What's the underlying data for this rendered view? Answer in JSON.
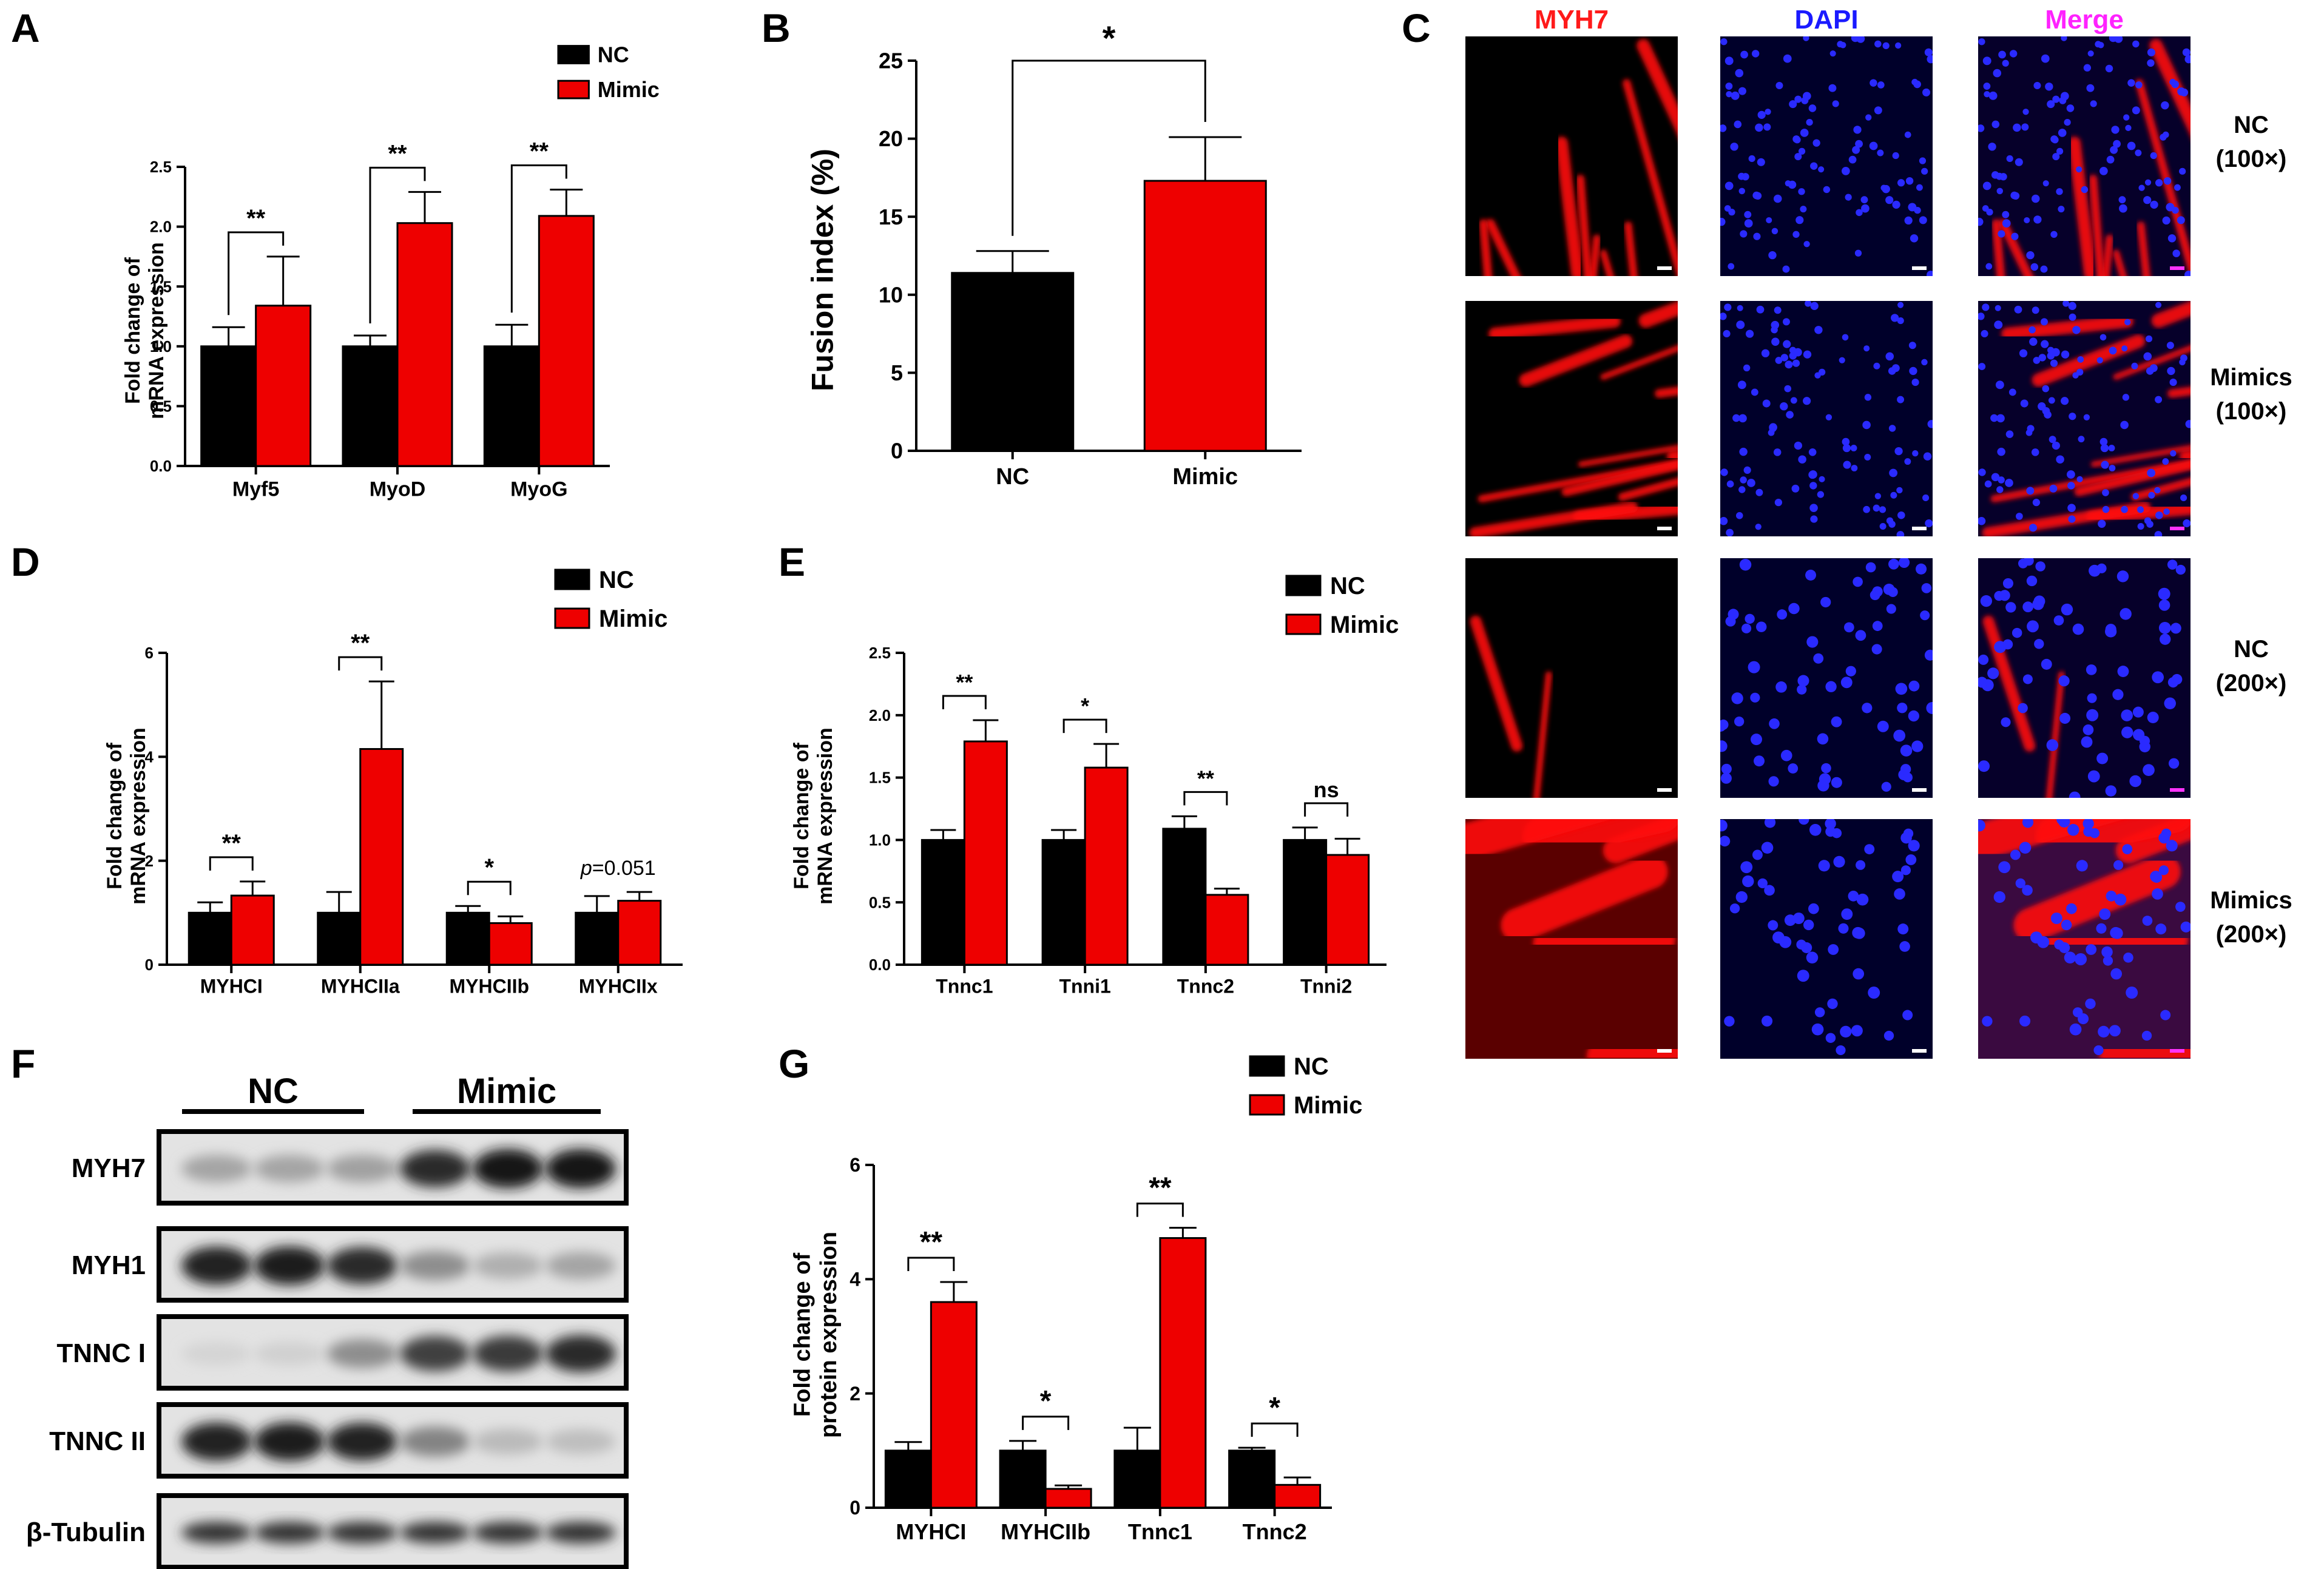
{
  "panel_letters": {
    "A": "A",
    "B": "B",
    "C": "C",
    "D": "D",
    "E": "E",
    "F": "F",
    "G": "G"
  },
  "colors": {
    "nc": "#000000",
    "mimic": "#ee0000"
  },
  "chart_data": [
    {
      "id": "A",
      "type": "bar",
      "ylabel": [
        "Fold change of",
        "mRNA expression"
      ],
      "categories": [
        "Myf5",
        "MyoD",
        "MyoG"
      ],
      "series": [
        {
          "name": "NC",
          "values": [
            1.0,
            1.0,
            1.0
          ],
          "errors": [
            0.16,
            0.09,
            0.18
          ]
        },
        {
          "name": "Mimic",
          "values": [
            1.34,
            2.03,
            2.09
          ],
          "errors": [
            0.41,
            0.26,
            0.22
          ]
        }
      ],
      "significance": [
        "**",
        "**",
        "**"
      ],
      "ylim": [
        0,
        2.5
      ],
      "yticks": [
        "0.0",
        "0.5",
        "1.0",
        "1.5",
        "2.0",
        "2.5"
      ],
      "legend": [
        "NC",
        "Mimic"
      ]
    },
    {
      "id": "B",
      "type": "bar",
      "ylabel": [
        "Fusion index (%)"
      ],
      "categories": [
        "NC",
        "Mimic"
      ],
      "series": [
        {
          "name": "Fusion index",
          "values": [
            11.4,
            17.3
          ],
          "errors": [
            1.4,
            2.8
          ]
        }
      ],
      "significance": [
        "*"
      ],
      "ylim": [
        0,
        25
      ],
      "yticks": [
        "0",
        "5",
        "10",
        "15",
        "20",
        "25"
      ]
    },
    {
      "id": "D",
      "type": "bar",
      "ylabel": [
        "Fold change of",
        "mRNA expression"
      ],
      "categories": [
        "MYHCI",
        "MYHCIIa",
        "MYHCIIb",
        "MYHCIIx"
      ],
      "series": [
        {
          "name": "NC",
          "values": [
            1.0,
            1.0,
            1.0,
            1.0
          ],
          "errors": [
            0.2,
            0.4,
            0.13,
            0.32
          ]
        },
        {
          "name": "Mimic",
          "values": [
            1.33,
            4.15,
            0.8,
            1.23
          ],
          "errors": [
            0.27,
            1.3,
            0.13,
            0.17
          ]
        }
      ],
      "significance": [
        "**",
        "**",
        "*",
        "p=0.051"
      ],
      "ylim": [
        0,
        6
      ],
      "yticks": [
        "0",
        "2",
        "4",
        "6"
      ],
      "legend": [
        "NC",
        "Mimic"
      ]
    },
    {
      "id": "E",
      "type": "bar",
      "ylabel": [
        "Fold change of",
        "mRNA expression"
      ],
      "categories": [
        "Tnnc1",
        "Tnni1",
        "Tnnc2",
        "Tnni2"
      ],
      "series": [
        {
          "name": "NC",
          "values": [
            1.0,
            1.0,
            1.09,
            1.0
          ],
          "errors": [
            0.08,
            0.08,
            0.1,
            0.1
          ]
        },
        {
          "name": "Mimic",
          "values": [
            1.79,
            1.58,
            0.56,
            0.88
          ],
          "errors": [
            0.17,
            0.19,
            0.05,
            0.13
          ]
        }
      ],
      "significance": [
        "**",
        "*",
        "**",
        "ns"
      ],
      "ylim": [
        0,
        2.5
      ],
      "yticks": [
        "0.0",
        "0.5",
        "1.0",
        "1.5",
        "2.0",
        "2.5"
      ],
      "legend": [
        "NC",
        "Mimic"
      ]
    },
    {
      "id": "G",
      "type": "bar",
      "ylabel": [
        "Fold change of",
        "protein expression"
      ],
      "categories": [
        "MYHCI",
        "MYHCIIb",
        "Tnnc1",
        "Tnnc2"
      ],
      "series": [
        {
          "name": "NC",
          "values": [
            1.0,
            1.0,
            1.0,
            1.0
          ],
          "errors": [
            0.15,
            0.17,
            0.4,
            0.05
          ]
        },
        {
          "name": "Mimic",
          "values": [
            3.6,
            0.33,
            4.72,
            0.4
          ],
          "errors": [
            0.35,
            0.06,
            0.18,
            0.13
          ]
        }
      ],
      "significance": [
        "**",
        "*",
        "**",
        "*"
      ],
      "ylim": [
        0,
        6
      ],
      "yticks": [
        "0",
        "2",
        "4",
        "6"
      ],
      "legend": [
        "NC",
        "Mimic"
      ]
    }
  ],
  "micrographs": {
    "columns": [
      "MYH7",
      "DAPI",
      "Merge"
    ],
    "rows": [
      [
        "NC",
        "(100×)"
      ],
      [
        "Mimics",
        "(100×)"
      ],
      [
        "NC",
        "(200×)"
      ],
      [
        "Mimics",
        "(200×)"
      ]
    ]
  },
  "western": {
    "groups": [
      "NC",
      "Mimic"
    ],
    "bands": [
      "MYH7",
      "MYH1",
      "TNNC I",
      "TNNC II",
      "β-Tubulin"
    ],
    "intensity": [
      [
        0.3,
        0.3,
        0.32,
        0.85,
        0.95,
        0.95
      ],
      [
        0.9,
        0.92,
        0.85,
        0.4,
        0.25,
        0.3
      ],
      [
        0.08,
        0.1,
        0.4,
        0.75,
        0.78,
        0.85
      ],
      [
        0.9,
        0.92,
        0.88,
        0.45,
        0.2,
        0.18
      ],
      [
        0.8,
        0.8,
        0.8,
        0.8,
        0.8,
        0.8
      ]
    ]
  }
}
